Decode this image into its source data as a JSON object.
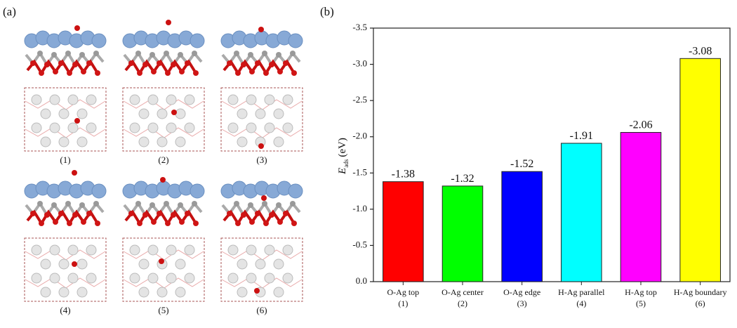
{
  "panel_labels": [
    "(a)",
    "(b)"
  ],
  "structure_labels": [
    "(1)",
    "(2)",
    "(3)",
    "(4)",
    "(5)",
    "(6)"
  ],
  "chart_data": {
    "type": "bar",
    "ylabel": "E",
    "ylabel_sub": "ads",
    "ylabel_unit": "(eV)",
    "categories": [
      "O-Ag top",
      "O-Ag center",
      "O-Ag edge",
      "H-Ag parallel",
      "H-Ag top",
      "H-Ag boundary"
    ],
    "category_numbers": [
      "(1)",
      "(2)",
      "(3)",
      "(4)",
      "(5)",
      "(6)"
    ],
    "values": [
      -1.38,
      -1.32,
      -1.52,
      -1.91,
      -2.06,
      -3.08
    ],
    "colors": [
      "#ff0000",
      "#00ff00",
      "#0000ff",
      "#00ffff",
      "#ff00ff",
      "#ffff00"
    ],
    "ylim": [
      0,
      -3.5
    ],
    "yticks": [
      {
        "value": 0,
        "label": "0.0"
      },
      -0.5,
      {
        "value": -1,
        "label": "-1.0"
      },
      -1.5,
      {
        "value": -2,
        "label": "-2.0"
      },
      -2.5,
      {
        "value": -3,
        "label": "-3.0"
      },
      -3.5
    ]
  }
}
